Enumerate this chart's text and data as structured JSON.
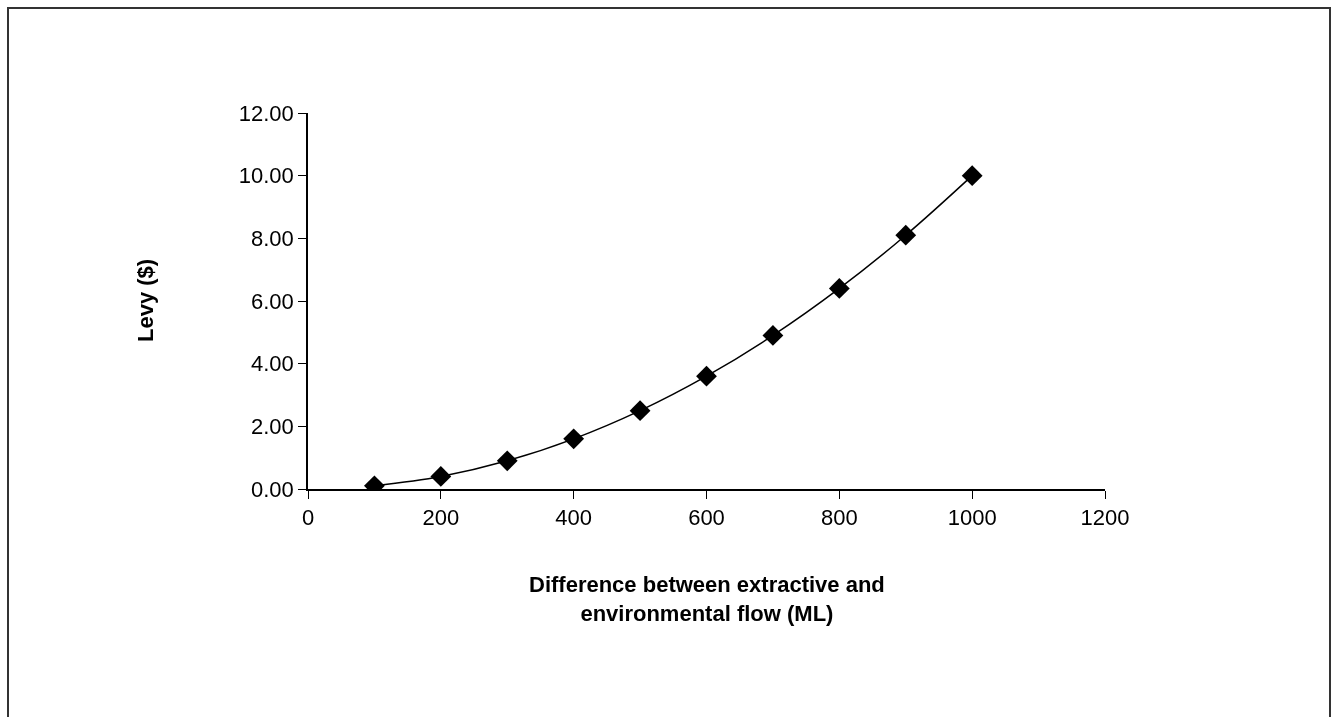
{
  "chart_data": {
    "type": "line",
    "xlabel": "Difference between extractive and\nenvironmental flow (ML)",
    "ylabel": "Levy ($)",
    "x": [
      100,
      200,
      300,
      400,
      500,
      600,
      700,
      800,
      900,
      1000
    ],
    "series": [
      {
        "color": "#000000",
        "values": [
          0.1,
          0.4,
          0.9,
          1.6,
          2.5,
          3.6,
          4.9,
          6.4,
          8.1,
          10.0
        ]
      }
    ],
    "xlim": [
      0,
      1200
    ],
    "xticks": [
      0,
      200,
      400,
      600,
      800,
      1000,
      1200
    ],
    "ylim": [
      0,
      12
    ],
    "yticks": [
      {
        "value": 0,
        "label": "0.00"
      },
      {
        "value": 2,
        "label": "2.00"
      },
      {
        "value": 4,
        "label": "4.00"
      },
      {
        "value": 6,
        "label": "6.00"
      },
      {
        "value": 8,
        "label": "8.00"
      },
      {
        "value": 10,
        "label": "10.00"
      },
      {
        "value": 12,
        "label": "12.00"
      }
    ],
    "marker": "diamond",
    "line_style": "solid"
  }
}
